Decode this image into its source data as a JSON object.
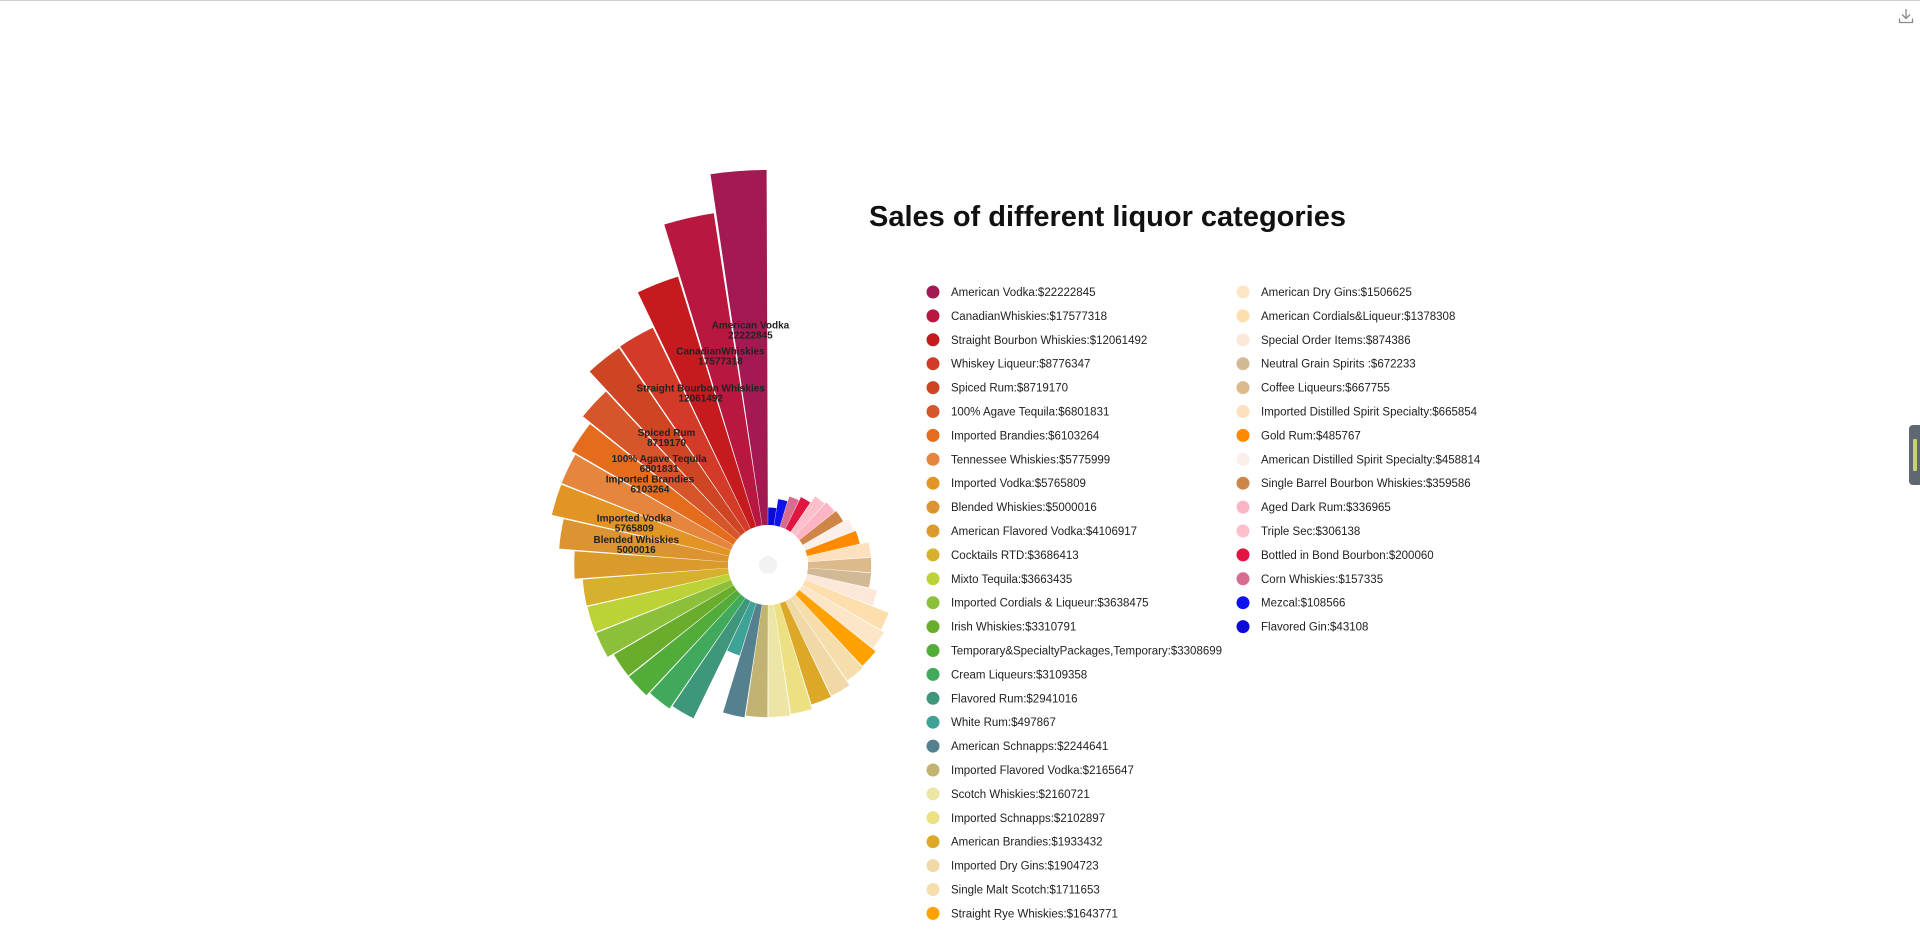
{
  "chart_data": {
    "type": "bar",
    "subtype": "polar-spiral",
    "title": "Sales of different liquor categories",
    "legend_position": "right",
    "value_prefix": "$",
    "series": [
      {
        "name": "American Vodka",
        "value": 22222845,
        "color": "#a31a52"
      },
      {
        "name": "CanadianWhiskies",
        "value": 17577318,
        "color": "#b8173f"
      },
      {
        "name": "Straight Bourbon Whiskies",
        "value": 12061492,
        "color": "#c51b1f"
      },
      {
        "name": "Whiskey Liqueur",
        "value": 8776347,
        "color": "#d33a28"
      },
      {
        "name": "Spiced Rum",
        "value": 8719170,
        "color": "#cd4522"
      },
      {
        "name": "100% Agave Tequila",
        "value": 6801831,
        "color": "#d6552a"
      },
      {
        "name": "Imported Brandies",
        "value": 6103264,
        "color": "#e56c1d"
      },
      {
        "name": "Tennessee Whiskies",
        "value": 5775999,
        "color": "#e6853e"
      },
      {
        "name": "Imported Vodka",
        "value": 5765809,
        "color": "#e29524"
      },
      {
        "name": "Blended Whiskies",
        "value": 5000016,
        "color": "#dc9433"
      },
      {
        "name": "American Flavored Vodka",
        "value": 4106917,
        "color": "#da9a2c"
      },
      {
        "name": "Cocktails RTD",
        "value": 3686413,
        "color": "#d6b12e"
      },
      {
        "name": "Mixto Tequila",
        "value": 3663435,
        "color": "#bcd237"
      },
      {
        "name": "Imported Cordials & Liqueur",
        "value": 3638475,
        "color": "#8cbf3a"
      },
      {
        "name": "Irish Whiskies",
        "value": 3310791,
        "color": "#6aad2c"
      },
      {
        "name": "Temporary&SpecialtyPackages,Temporary",
        "value": 3308699,
        "color": "#52ac3a"
      },
      {
        "name": "Cream Liqueurs",
        "value": 3109358,
        "color": "#41a95b"
      },
      {
        "name": "Flavored Rum",
        "value": 2941016,
        "color": "#3f977b"
      },
      {
        "name": "White Rum",
        "value": 497867,
        "color": "#3fa297"
      },
      {
        "name": "American Schnapps",
        "value": 2244641,
        "color": "#55818f"
      },
      {
        "name": "Imported Flavored Vodka",
        "value": 2165647,
        "color": "#c2b372"
      },
      {
        "name": "Scotch Whiskies",
        "value": 2160721,
        "color": "#ede5a6"
      },
      {
        "name": "Imported Schnapps",
        "value": 2102897,
        "color": "#ece082"
      },
      {
        "name": "American Brandies",
        "value": 1933432,
        "color": "#dda827"
      },
      {
        "name": "Imported Dry Gins",
        "value": 1904723,
        "color": "#f0d9a6"
      },
      {
        "name": "Single Malt Scotch",
        "value": 1711653,
        "color": "#f6deac"
      },
      {
        "name": "Straight Rye Whiskies",
        "value": 1643771,
        "color": "#ffa200"
      },
      {
        "name": "American Dry Gins",
        "value": 1506625,
        "color": "#fde6c7"
      },
      {
        "name": "American Cordials&Liqueur",
        "value": 1378308,
        "color": "#fcdfac"
      },
      {
        "name": "Special Order Items",
        "value": 874386,
        "color": "#fbe8d8"
      },
      {
        "name": "Neutral Grain Spirits ",
        "value": 672233,
        "color": "#d2b995"
      },
      {
        "name": "Coffee Liqueurs",
        "value": 667755,
        "color": "#dcba8c"
      },
      {
        "name": "Imported Distilled Spirit Specialty",
        "value": 665854,
        "color": "#fde0bd"
      },
      {
        "name": "Gold Rum",
        "value": 485767,
        "color": "#ff8a00"
      },
      {
        "name": "American Distilled Spirit Specialty",
        "value": 458814,
        "color": "#fbf0e9"
      },
      {
        "name": "Single Barrel Bourbon Whiskies",
        "value": 359586,
        "color": "#d08548"
      },
      {
        "name": "Aged Dark Rum",
        "value": 336965,
        "color": "#fdb5c6"
      },
      {
        "name": "Triple Sec",
        "value": 306138,
        "color": "#fdc0cb"
      },
      {
        "name": "Bottled in Bond Bourbon",
        "value": 200060,
        "color": "#e01640"
      },
      {
        "name": "Corn Whiskies",
        "value": 157335,
        "color": "#d86b90"
      },
      {
        "name": "Mezcal",
        "value": 108566,
        "color": "#0d12ee"
      },
      {
        "name": "Flavored Gin",
        "value": 43108,
        "color": "#0c0ad6"
      }
    ],
    "bar_labels": [
      {
        "name": "American Vodka",
        "value": "22222845"
      },
      {
        "name": "CanadianWhiskies",
        "value": "17577318"
      },
      {
        "name": "Straight Bourbon Whiskies",
        "value": "12061492"
      },
      {
        "name": "Spiced Rum",
        "value": "8719170"
      },
      {
        "name": "100% Agave Tequila",
        "value": "6801831"
      },
      {
        "name": "Imported Brandies",
        "value": "6103264"
      },
      {
        "name": "Imported Vodka",
        "value": "5765809"
      },
      {
        "name": "Blended Whiskies",
        "value": "5000016"
      }
    ]
  },
  "icons": {
    "download": "download-icon"
  }
}
